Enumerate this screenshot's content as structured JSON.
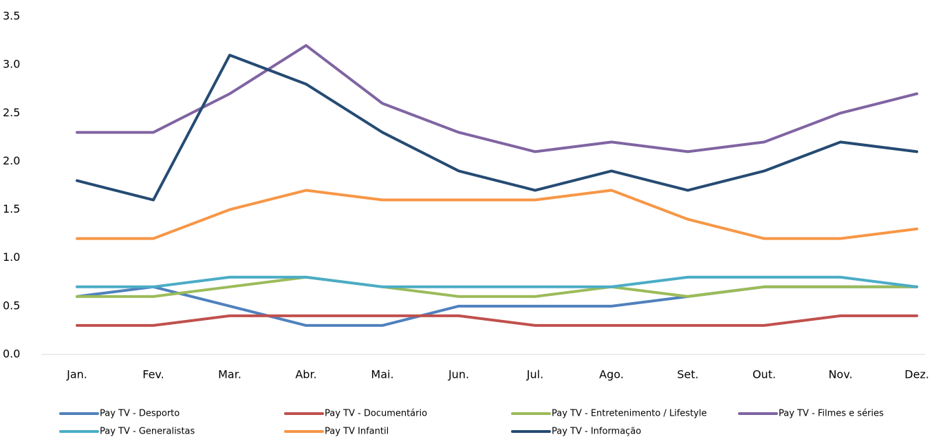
{
  "chart_data": {
    "type": "line",
    "categories": [
      "Jan.",
      "Fev.",
      "Mar.",
      "Abr.",
      "Mai.",
      "Jun.",
      "Jul.",
      "Ago.",
      "Set.",
      "Out.",
      "Nov.",
      "Dez."
    ],
    "series": [
      {
        "name": "Pay TV - Desporto",
        "color": "#4f81bd",
        "values": [
          0.6,
          0.7,
          0.5,
          0.3,
          0.3,
          0.5,
          0.5,
          0.5,
          0.6,
          0.7,
          0.7,
          0.7
        ]
      },
      {
        "name": "Pay TV - Documentário",
        "color": "#c0504d",
        "values": [
          0.3,
          0.3,
          0.4,
          0.4,
          0.4,
          0.4,
          0.3,
          0.3,
          0.3,
          0.3,
          0.4,
          0.4
        ]
      },
      {
        "name": "Pay TV - Entretenimento / Lifestyle",
        "color": "#9bbb59",
        "values": [
          0.6,
          0.6,
          0.7,
          0.8,
          0.7,
          0.6,
          0.6,
          0.7,
          0.6,
          0.7,
          0.7,
          0.7
        ]
      },
      {
        "name": "Pay TV - Filmes e séries",
        "color": "#8064a2",
        "values": [
          2.3,
          2.3,
          2.7,
          3.2,
          2.6,
          2.3,
          2.1,
          2.2,
          2.1,
          2.2,
          2.5,
          2.7
        ]
      },
      {
        "name": "Pay TV - Generalistas",
        "color": "#4bacc6",
        "values": [
          0.7,
          0.7,
          0.8,
          0.8,
          0.7,
          0.7,
          0.7,
          0.7,
          0.8,
          0.8,
          0.8,
          0.7
        ]
      },
      {
        "name": "Pay TV Infantil",
        "color": "#f79646",
        "values": [
          1.2,
          1.2,
          1.5,
          1.7,
          1.6,
          1.6,
          1.6,
          1.7,
          1.4,
          1.2,
          1.2,
          1.3
        ]
      },
      {
        "name": "Pay TV - Informação",
        "color": "#254b73",
        "values": [
          1.8,
          1.6,
          3.1,
          2.8,
          2.3,
          1.9,
          1.7,
          1.9,
          1.7,
          1.9,
          2.2,
          2.1
        ]
      }
    ],
    "ylim": [
      0,
      3.5
    ],
    "yticks": [
      {
        "value": 0,
        "label": "0.0"
      },
      0.5,
      {
        "value": 1,
        "label": "1.0"
      },
      1.5,
      {
        "value": 2,
        "label": "2.0"
      },
      2.5,
      {
        "value": 3,
        "label": "3.0"
      },
      3.5
    ],
    "grid": false,
    "legend": "bottom"
  }
}
